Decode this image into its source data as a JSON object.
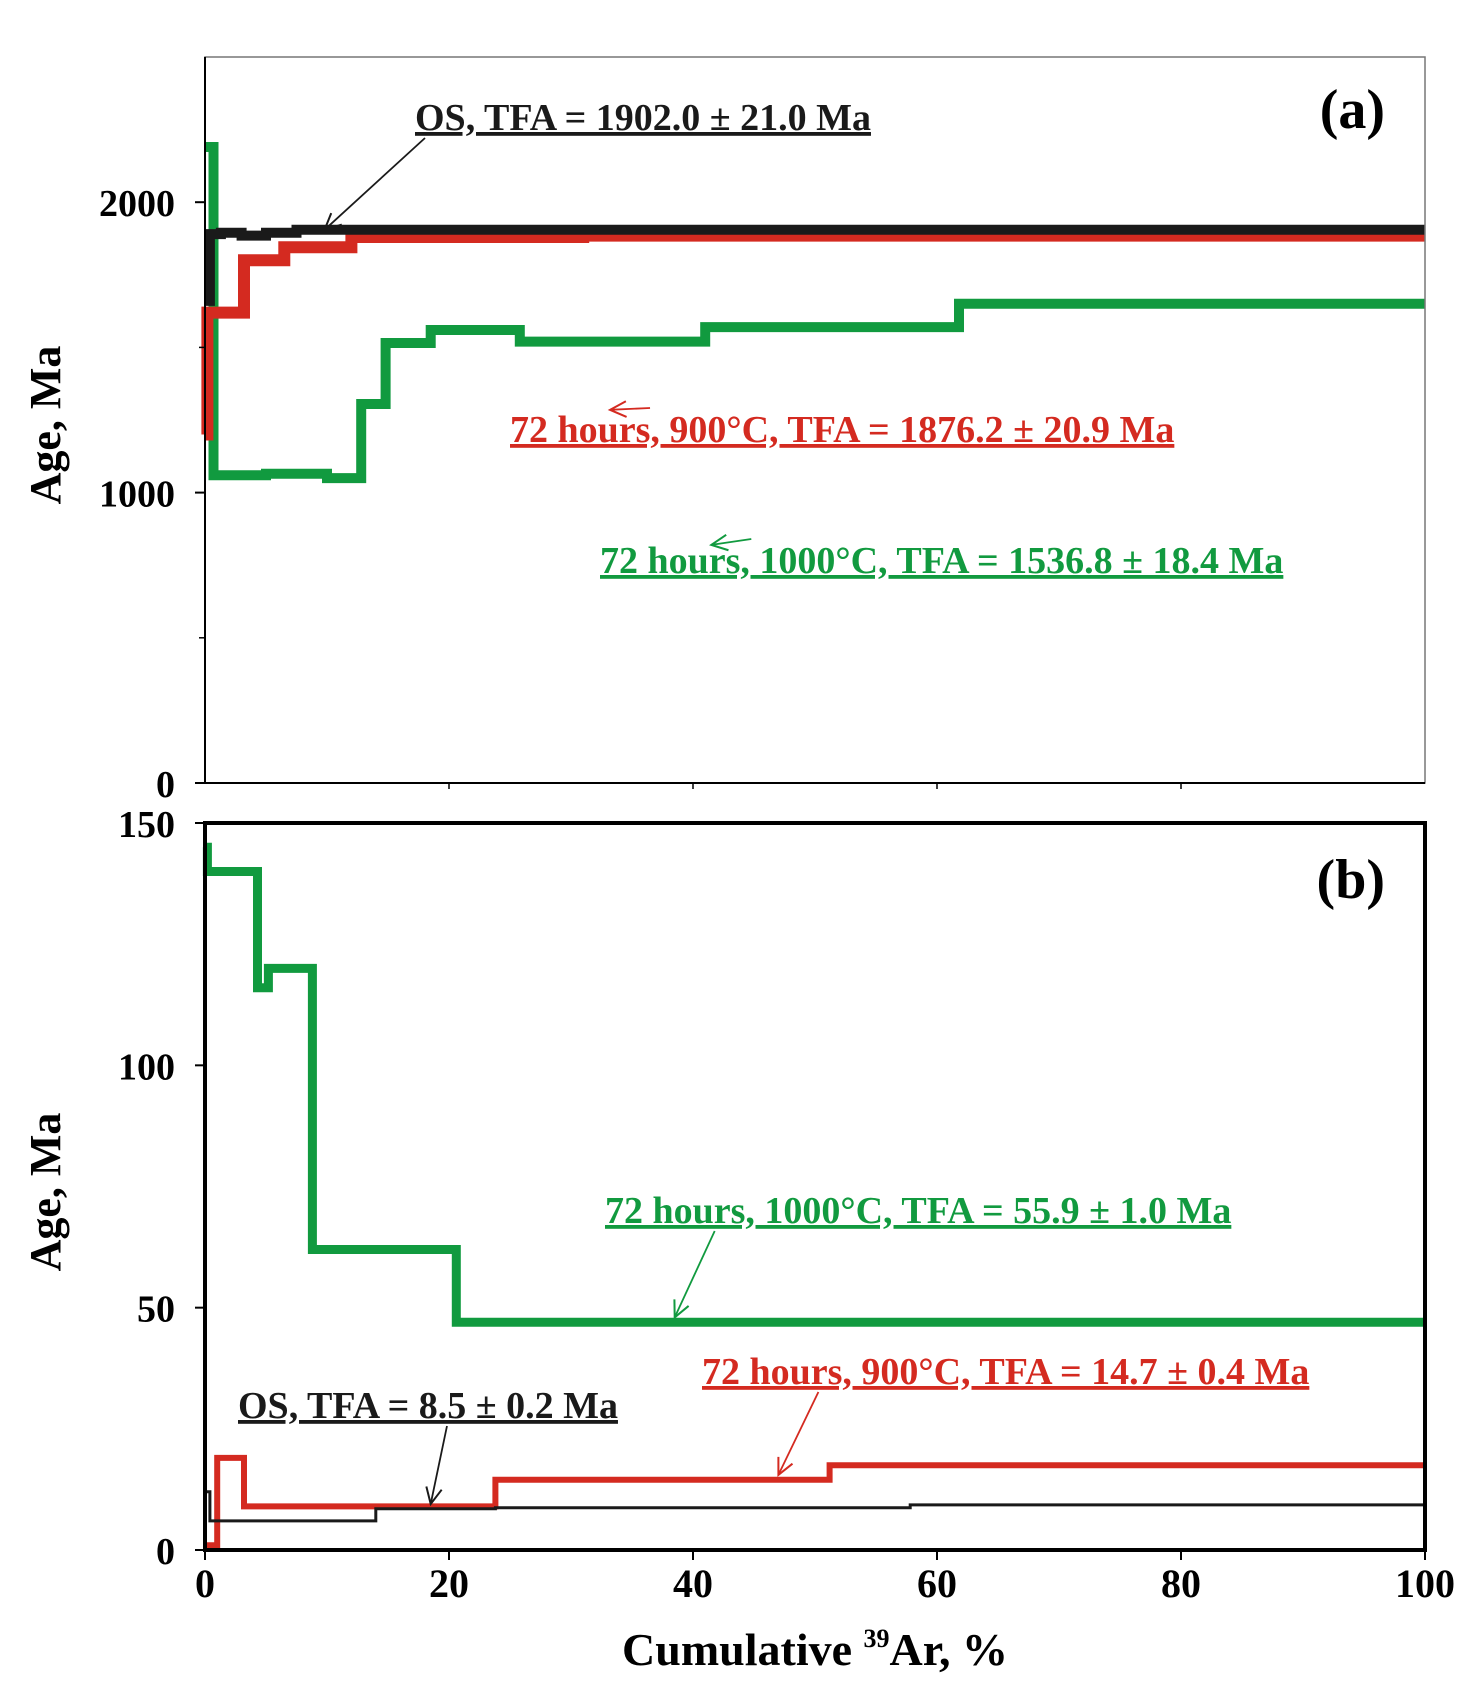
{
  "colors": {
    "os": "#1a1a1a",
    "h900": "#d42a20",
    "h1000": "#119a3f",
    "axis": "#000000"
  },
  "xaxis": {
    "label_prefix": "Cumulative ",
    "label_sup": "39",
    "label_suffix": "Ar, %",
    "ticks": [
      "0",
      "20",
      "40",
      "60",
      "80",
      "100"
    ],
    "range": [
      0,
      100
    ]
  },
  "chart_data": [
    {
      "type": "line",
      "panel": "(a)",
      "ylabel": "Age, Ma",
      "xlim": [
        0,
        100
      ],
      "ylim": [
        0,
        2500
      ],
      "yticks": [
        {
          "value": 0,
          "label": "0"
        },
        {
          "value": 1000,
          "label": "1000"
        },
        {
          "value": 2000,
          "label": "2000"
        }
      ],
      "yticks_minor": [
        500,
        1500
      ],
      "xticks_minor": [
        20,
        40,
        60,
        80
      ],
      "series": [
        {
          "name": "OS",
          "color_key": "os",
          "width": 10,
          "steps": [
            [
              0,
              0.4,
              1660
            ],
            [
              0.4,
              1.3,
              1890
            ],
            [
              1.3,
              3.0,
              1895
            ],
            [
              3.0,
              5.0,
              1885
            ],
            [
              5.0,
              7.5,
              1895
            ],
            [
              7.5,
              11.8,
              1905
            ],
            [
              11.8,
              30,
              1905
            ],
            [
              30,
              100,
              1905
            ]
          ]
        },
        {
          "name": "72 hours, 900°C",
          "color_key": "h900",
          "width": 12,
          "steps": [
            [
              0,
              0.2,
              1200
            ],
            [
              0.2,
              3.2,
              1620
            ],
            [
              3.2,
              6.5,
              1800
            ],
            [
              6.5,
              12.0,
              1845
            ],
            [
              12.0,
              31.0,
              1880
            ],
            [
              31.0,
              100,
              1885
            ]
          ]
        },
        {
          "name": "72 hours, 1000°C",
          "color_key": "h1000",
          "width": 10,
          "steps": [
            [
              0,
              0.7,
              2190
            ],
            [
              0.7,
              5.0,
              1060
            ],
            [
              5.0,
              10.0,
              1065
            ],
            [
              10.0,
              12.8,
              1050
            ],
            [
              12.8,
              14.8,
              1305
            ],
            [
              14.8,
              18.5,
              1515
            ],
            [
              18.5,
              25.8,
              1560
            ],
            [
              25.8,
              41.0,
              1520
            ],
            [
              41.0,
              61.8,
              1570
            ],
            [
              61.8,
              100,
              1650
            ]
          ]
        }
      ],
      "annotations": [
        {
          "text": "OS, TFA = 1902.0 ± 21.0 Ma",
          "color_key": "os",
          "arrow_to": [
            9.8,
            1905
          ]
        },
        {
          "text": "72 hours, 900°C, TFA = 1876.2 ± 20.9 Ma",
          "color_key": "h900",
          "arrow_to": [
            33.2,
            1285
          ]
        },
        {
          "text": "72 hours, 1000°C, TFA = 1536.8 ± 18.4 Ma",
          "color_key": "h1000",
          "arrow_to": [
            41.5,
            820
          ]
        }
      ]
    },
    {
      "type": "line",
      "panel": "(b)",
      "ylabel": "Age, Ma",
      "xlim": [
        0,
        100
      ],
      "ylim": [
        0,
        150
      ],
      "yticks": [
        {
          "value": 0,
          "label": "0"
        },
        {
          "value": 50,
          "label": "50"
        },
        {
          "value": 100,
          "label": "100"
        },
        {
          "value": 150,
          "label": "150"
        }
      ],
      "yticks_minor": [],
      "xticks_minor": [],
      "series": [
        {
          "name": "OS",
          "color_key": "os",
          "width": 3,
          "steps": [
            [
              0,
              0.4,
              12
            ],
            [
              0.4,
              14.0,
              6
            ],
            [
              14.0,
              23.8,
              8.5
            ],
            [
              23.8,
              57.8,
              8.7
            ],
            [
              57.8,
              100,
              9.3
            ]
          ]
        },
        {
          "name": "72 hours, 900°C",
          "color_key": "h900",
          "width": 6,
          "steps": [
            [
              0,
              1.0,
              1
            ],
            [
              1.0,
              3.2,
              19
            ],
            [
              3.2,
              23.8,
              9
            ],
            [
              23.8,
              51.2,
              14.5
            ],
            [
              51.2,
              100,
              17.5
            ]
          ]
        },
        {
          "name": "72 hours, 1000°C",
          "color_key": "h1000",
          "width": 9,
          "steps": [
            [
              0,
              0.2,
              145
            ],
            [
              0.2,
              2.6,
              140
            ],
            [
              2.6,
              4.3,
              140
            ],
            [
              4.3,
              5.2,
              116
            ],
            [
              5.2,
              8.8,
              120
            ],
            [
              8.8,
              20.6,
              62
            ],
            [
              20.6,
              100,
              47
            ]
          ]
        }
      ],
      "annotations": [
        {
          "text": "72 hours, 1000°C, TFA = 55.9 ± 1.0 Ma",
          "color_key": "h1000",
          "arrow_to": [
            38.5,
            48
          ]
        },
        {
          "text": "72 hours, 900°C, TFA = 14.7 ± 0.4 Ma",
          "color_key": "h900",
          "arrow_to": [
            47.0,
            15.5
          ]
        },
        {
          "text": "OS, TFA = 8.5 ± 0.2 Ma",
          "color_key": "os",
          "arrow_to": [
            18.5,
            9.5
          ]
        }
      ]
    }
  ]
}
